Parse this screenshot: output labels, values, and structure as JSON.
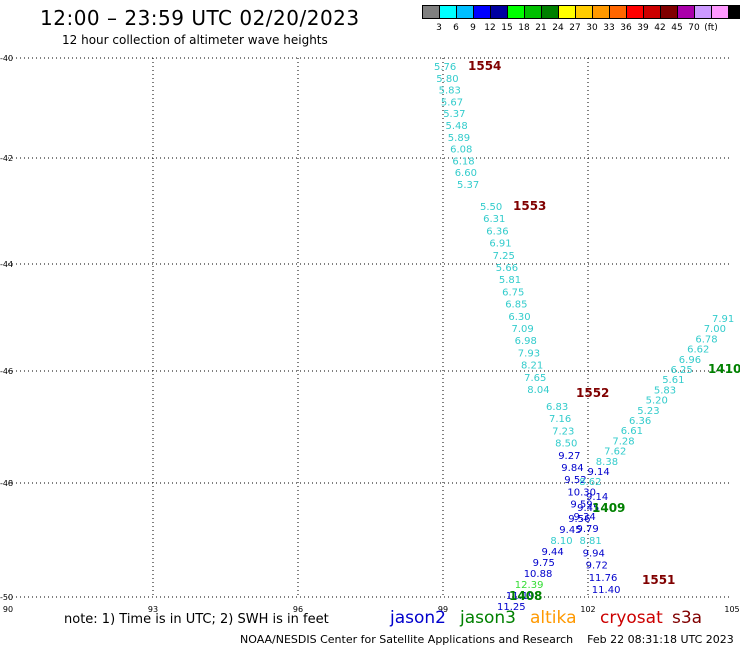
{
  "header": {
    "title": "12:00 – 23:59 UTC 02/20/2023",
    "subtitle": "12 hour collection of altimeter wave heights"
  },
  "legend": {
    "colors": [
      "#808080",
      "#00ffff",
      "#00bfff",
      "#0000ff",
      "#0000a0",
      "#00ff00",
      "#00c000",
      "#008000",
      "#ffff00",
      "#ffcc00",
      "#ff9900",
      "#ff6600",
      "#ff0000",
      "#cc0000",
      "#800000",
      "#aa00aa",
      "#cc99ff",
      "#ff99ff",
      "#000000"
    ],
    "labels": [
      "3",
      "6",
      "9",
      "12",
      "15",
      "18",
      "21",
      "24",
      "27",
      "30",
      "33",
      "36",
      "39",
      "42",
      "45",
      "70",
      "(ft)"
    ]
  },
  "axes": {
    "x_labels": [
      "90",
      "93",
      "96",
      "99",
      "102",
      "105"
    ],
    "y_labels": [
      "-40",
      "-42",
      "-44",
      "-46",
      "-48",
      "-50"
    ]
  },
  "tracks": [
    {
      "id": "1554",
      "id_color": "#800000",
      "values": [
        {
          "v": "5.76",
          "c": "#33cccc"
        },
        {
          "v": "5.80",
          "c": "#33cccc"
        },
        {
          "v": "5.83",
          "c": "#33cccc"
        },
        {
          "v": "5.67",
          "c": "#33cccc"
        },
        {
          "v": "5.37",
          "c": "#33cccc"
        },
        {
          "v": "5.48",
          "c": "#33cccc"
        },
        {
          "v": "5.89",
          "c": "#33cccc"
        },
        {
          "v": "6.08",
          "c": "#33cccc"
        },
        {
          "v": "6.18",
          "c": "#33cccc"
        },
        {
          "v": "6.60",
          "c": "#33cccc"
        },
        {
          "v": "5.37",
          "c": "#33cccc"
        }
      ]
    },
    {
      "id": "1553",
      "id_color": "#800000",
      "values": [
        {
          "v": "5.50",
          "c": "#33cccc"
        },
        {
          "v": "6.31",
          "c": "#33cccc"
        },
        {
          "v": "6.36",
          "c": "#33cccc"
        },
        {
          "v": "6.91",
          "c": "#33cccc"
        },
        {
          "v": "7.25",
          "c": "#33cccc"
        },
        {
          "v": "5.66",
          "c": "#33cccc"
        },
        {
          "v": "5.81",
          "c": "#33cccc"
        },
        {
          "v": "6.75",
          "c": "#33cccc"
        },
        {
          "v": "6.85",
          "c": "#33cccc"
        },
        {
          "v": "6.30",
          "c": "#33cccc"
        },
        {
          "v": "7.09",
          "c": "#33cccc"
        },
        {
          "v": "6.98",
          "c": "#33cccc"
        },
        {
          "v": "7.93",
          "c": "#33cccc"
        },
        {
          "v": "8.21",
          "c": "#33cccc"
        },
        {
          "v": "7.65",
          "c": "#33cccc"
        },
        {
          "v": "8.04",
          "c": "#33cccc"
        }
      ]
    },
    {
      "id": "1552",
      "id_color": "#800000",
      "values": [
        {
          "v": "6.83",
          "c": "#33cccc"
        },
        {
          "v": "7.16",
          "c": "#33cccc"
        },
        {
          "v": "7.23",
          "c": "#33cccc"
        },
        {
          "v": "8.50",
          "c": "#33cccc"
        },
        {
          "v": "9.27",
          "c": "#0000cc"
        },
        {
          "v": "9.84",
          "c": "#0000cc"
        },
        {
          "v": "9.52",
          "c": "#0000cc"
        },
        {
          "v": "10.30",
          "c": "#0000cc"
        },
        {
          "v": "9.59",
          "c": "#0000cc"
        },
        {
          "v": "9.34",
          "c": "#0000cc"
        },
        {
          "v": "9.79",
          "c": "#0000cc"
        },
        {
          "v": "8.81",
          "c": "#33cccc"
        },
        {
          "v": "9.94",
          "c": "#0000cc"
        },
        {
          "v": "9.72",
          "c": "#0000cc"
        },
        {
          "v": "11.76",
          "c": "#0000cc"
        },
        {
          "v": "11.40",
          "c": "#0000cc"
        }
      ]
    },
    {
      "id": "1551",
      "id_color": "#800000",
      "values": []
    },
    {
      "id": "1410",
      "id_color": "#008000",
      "values": [
        {
          "v": "7.91",
          "c": "#33cccc"
        },
        {
          "v": "7.00",
          "c": "#33cccc"
        },
        {
          "v": "6.78",
          "c": "#33cccc"
        },
        {
          "v": "6.62",
          "c": "#33cccc"
        },
        {
          "v": "6.96",
          "c": "#33cccc"
        },
        {
          "v": "6.25",
          "c": "#33cccc"
        },
        {
          "v": "5.61",
          "c": "#33cccc"
        },
        {
          "v": "5.83",
          "c": "#33cccc"
        },
        {
          "v": "5.20",
          "c": "#33cccc"
        },
        {
          "v": "5.23",
          "c": "#33cccc"
        },
        {
          "v": "6.36",
          "c": "#33cccc"
        },
        {
          "v": "6.61",
          "c": "#33cccc"
        },
        {
          "v": "7.28",
          "c": "#33cccc"
        },
        {
          "v": "7.62",
          "c": "#33cccc"
        },
        {
          "v": "8.38",
          "c": "#33cccc"
        },
        {
          "v": "9.14",
          "c": "#0000cc"
        },
        {
          "v": "8.62",
          "c": "#33cccc"
        }
      ]
    },
    {
      "id": "1409",
      "id_color": "#008000",
      "values": [
        {
          "v": "9.14",
          "c": "#0000cc"
        },
        {
          "v": "9.45",
          "c": "#0000cc"
        },
        {
          "v": "9.56",
          "c": "#0000cc"
        },
        {
          "v": "9.45",
          "c": "#0000cc"
        },
        {
          "v": "8.10",
          "c": "#33cccc"
        },
        {
          "v": "9.44",
          "c": "#0000cc"
        },
        {
          "v": "9.75",
          "c": "#0000cc"
        },
        {
          "v": "10.88",
          "c": "#0000cc"
        },
        {
          "v": "12.39",
          "c": "#33dd33"
        },
        {
          "v": "11.19",
          "c": "#0000cc"
        },
        {
          "v": "11.25",
          "c": "#0000cc"
        }
      ]
    },
    {
      "id": "1408",
      "id_color": "#008000",
      "values": []
    }
  ],
  "footer": {
    "note": "note:  1) Time is in UTC;  2) SWH is in feet",
    "satellites": [
      {
        "name": "jason2",
        "color": "#0000cc"
      },
      {
        "name": "jason3",
        "color": "#008000"
      },
      {
        "name": "altika",
        "color": "#ff9900"
      },
      {
        "name": "cryosat",
        "color": "#cc0000"
      },
      {
        "name": "s3a",
        "color": "#800000"
      }
    ],
    "credit": "NOAA/NESDIS Center for Satellite Applications and Research    Feb 22 08:31:18 UTC 2023"
  }
}
